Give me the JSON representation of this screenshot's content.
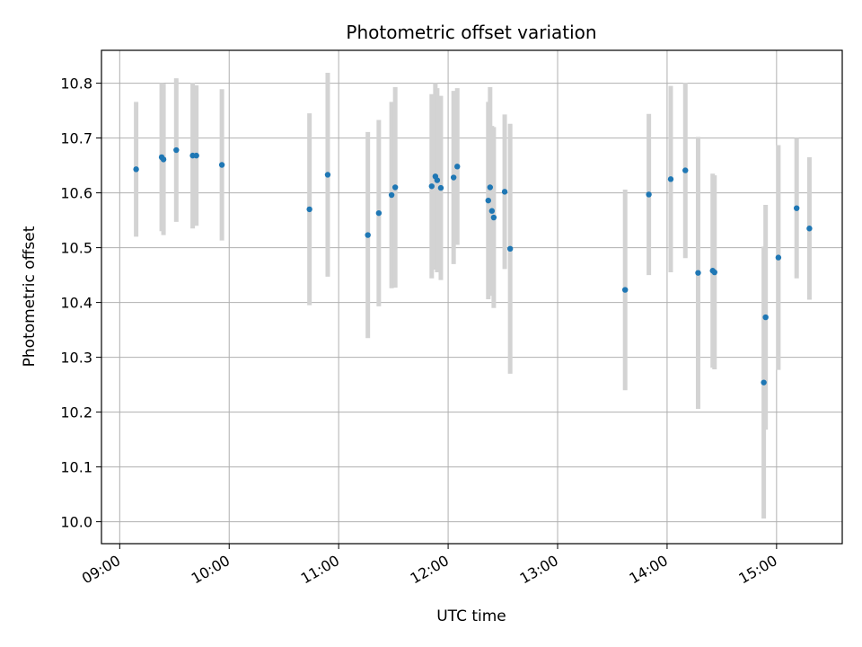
{
  "chart_data": {
    "type": "scatter",
    "title": "Photometric offset variation",
    "xlabel": "UTC time",
    "ylabel": "Photometric offset",
    "x_axis": "time",
    "xlim": [
      "08:50",
      "15:36"
    ],
    "ylim": [
      9.96,
      10.86
    ],
    "grid": true,
    "xticks": [
      "09:00",
      "10:00",
      "11:00",
      "12:00",
      "13:00",
      "14:00",
      "15:00"
    ],
    "yticks": [
      "10.0",
      "10.1",
      "10.2",
      "10.3",
      "10.4",
      "10.5",
      "10.6",
      "10.7",
      "10.8"
    ],
    "colors": {
      "points": "#1f77b4",
      "errorbars": "#d3d3d3",
      "grid": "#b0b0b0"
    },
    "series": [
      {
        "points": [
          {
            "x": "09:09",
            "y": 10.643,
            "yerr": 0.123
          },
          {
            "x": "09:23",
            "y": 10.665,
            "yerr": 0.135
          },
          {
            "x": "09:24",
            "y": 10.661,
            "yerr": 0.138
          },
          {
            "x": "09:31",
            "y": 10.678,
            "yerr": 0.131
          },
          {
            "x": "09:40",
            "y": 10.668,
            "yerr": 0.133
          },
          {
            "x": "09:42",
            "y": 10.668,
            "yerr": 0.128
          },
          {
            "x": "09:56",
            "y": 10.651,
            "yerr": 0.138
          },
          {
            "x": "10:44",
            "y": 10.57,
            "yerr": 0.175
          },
          {
            "x": "10:54",
            "y": 10.633,
            "yerr": 0.186
          },
          {
            "x": "11:16",
            "y": 10.523,
            "yerr": 0.188
          },
          {
            "x": "11:22",
            "y": 10.563,
            "yerr": 0.17
          },
          {
            "x": "11:29",
            "y": 10.596,
            "yerr": 0.17
          },
          {
            "x": "11:31",
            "y": 10.61,
            "yerr": 0.183
          },
          {
            "x": "11:51",
            "y": 10.612,
            "yerr": 0.168
          },
          {
            "x": "11:53",
            "y": 10.63,
            "yerr": 0.17
          },
          {
            "x": "11:54",
            "y": 10.623,
            "yerr": 0.168
          },
          {
            "x": "11:56",
            "y": 10.609,
            "yerr": 0.168
          },
          {
            "x": "12:03",
            "y": 10.628,
            "yerr": 0.158
          },
          {
            "x": "12:05",
            "y": 10.648,
            "yerr": 0.143
          },
          {
            "x": "12:22",
            "y": 10.586,
            "yerr": 0.18
          },
          {
            "x": "12:23",
            "y": 10.61,
            "yerr": 0.183
          },
          {
            "x": "12:24",
            "y": 10.567,
            "yerr": 0.155
          },
          {
            "x": "12:25",
            "y": 10.555,
            "yerr": 0.165
          },
          {
            "x": "12:31",
            "y": 10.602,
            "yerr": 0.141
          },
          {
            "x": "12:34",
            "y": 10.498,
            "yerr": 0.228
          },
          {
            "x": "13:37",
            "y": 10.423,
            "yerr": 0.183
          },
          {
            "x": "13:50",
            "y": 10.597,
            "yerr": 0.147
          },
          {
            "x": "14:02",
            "y": 10.625,
            "yerr": 0.17
          },
          {
            "x": "14:10",
            "y": 10.641,
            "yerr": 0.16
          },
          {
            "x": "14:17",
            "y": 10.454,
            "yerr": 0.248
          },
          {
            "x": "14:25",
            "y": 10.458,
            "yerr": 0.177
          },
          {
            "x": "14:26",
            "y": 10.455,
            "yerr": 0.177
          },
          {
            "x": "14:53",
            "y": 10.254,
            "yerr": 0.248
          },
          {
            "x": "14:54",
            "y": 10.373,
            "yerr": 0.205
          },
          {
            "x": "15:01",
            "y": 10.482,
            "yerr": 0.205
          },
          {
            "x": "15:11",
            "y": 10.572,
            "yerr": 0.128
          },
          {
            "x": "15:18",
            "y": 10.535,
            "yerr": 0.13
          }
        ]
      }
    ]
  }
}
